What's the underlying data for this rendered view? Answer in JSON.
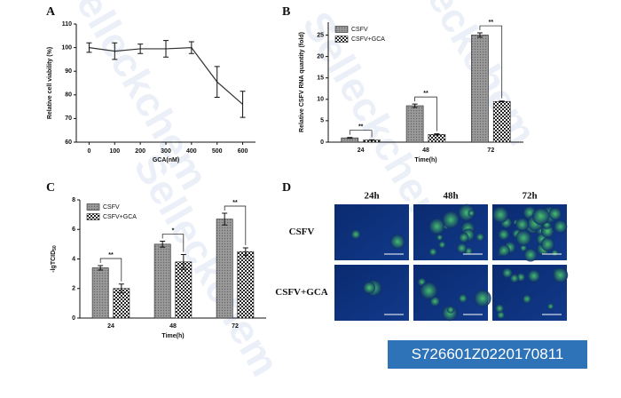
{
  "chart_data": [
    {
      "type": "line",
      "panel": "A",
      "xlabel": "GCA(nM)",
      "ylabel": "Relative cell viability (%)",
      "x": [
        0,
        100,
        200,
        300,
        400,
        500,
        600
      ],
      "values": [
        100,
        98.5,
        99.5,
        99.5,
        100,
        85.5,
        76
      ],
      "errors": [
        2,
        3.5,
        2,
        3.5,
        2.5,
        6.5,
        5.5
      ],
      "color": "#333333",
      "xlim": [
        -50,
        650
      ],
      "xticks": [
        0,
        100,
        200,
        300,
        400,
        500,
        600
      ],
      "ylim": [
        60,
        110
      ],
      "yticks": [
        60,
        70,
        80,
        90,
        100,
        110
      ]
    },
    {
      "type": "bar",
      "panel": "B",
      "xlabel": "Time(h)",
      "ylabel": "Relative CSFV RNA quantity (fold)",
      "categories": [
        "24",
        "48",
        "72"
      ],
      "series": [
        {
          "name": "CSFV",
          "color": "#8c8c8c",
          "values": [
            1.0,
            8.5,
            25
          ],
          "errors": [
            0.1,
            0.4,
            0.5
          ]
        },
        {
          "name": "CSFV+GCA",
          "color": "#ffffff",
          "values": [
            0.5,
            1.8,
            9.5
          ],
          "errors": [
            0.05,
            0.15,
            0.1
          ]
        }
      ],
      "significance": [
        "**",
        "**",
        "**"
      ],
      "ylim": [
        0,
        28
      ],
      "yticks": [
        0,
        5,
        10,
        15,
        20,
        25
      ]
    },
    {
      "type": "bar",
      "panel": "C",
      "xlabel": "Time(h)",
      "ylabel": "-lgTCID",
      "ylabel_subscript": "50",
      "categories": [
        "24",
        "48",
        "72"
      ],
      "series": [
        {
          "name": "CSFV",
          "color": "#8c8c8c",
          "values": [
            3.4,
            5.0,
            6.7
          ],
          "errors": [
            0.15,
            0.2,
            0.4
          ]
        },
        {
          "name": "CSFV+GCA",
          "color": "#ffffff",
          "values": [
            2.0,
            3.8,
            4.5
          ],
          "errors": [
            0.3,
            0.5,
            0.25
          ]
        }
      ],
      "significance": [
        "**",
        "*",
        "**"
      ],
      "ylim": [
        0,
        8
      ],
      "yticks": [
        0,
        2,
        4,
        6,
        8
      ]
    }
  ],
  "image_panel": {
    "panel": "D",
    "columns": [
      "24h",
      "48h",
      "72h"
    ],
    "rows": [
      "CSFV",
      "CSFV+GCA"
    ]
  },
  "catalog_id": "S726601Z0220170811",
  "watermark": "Selleckchem"
}
